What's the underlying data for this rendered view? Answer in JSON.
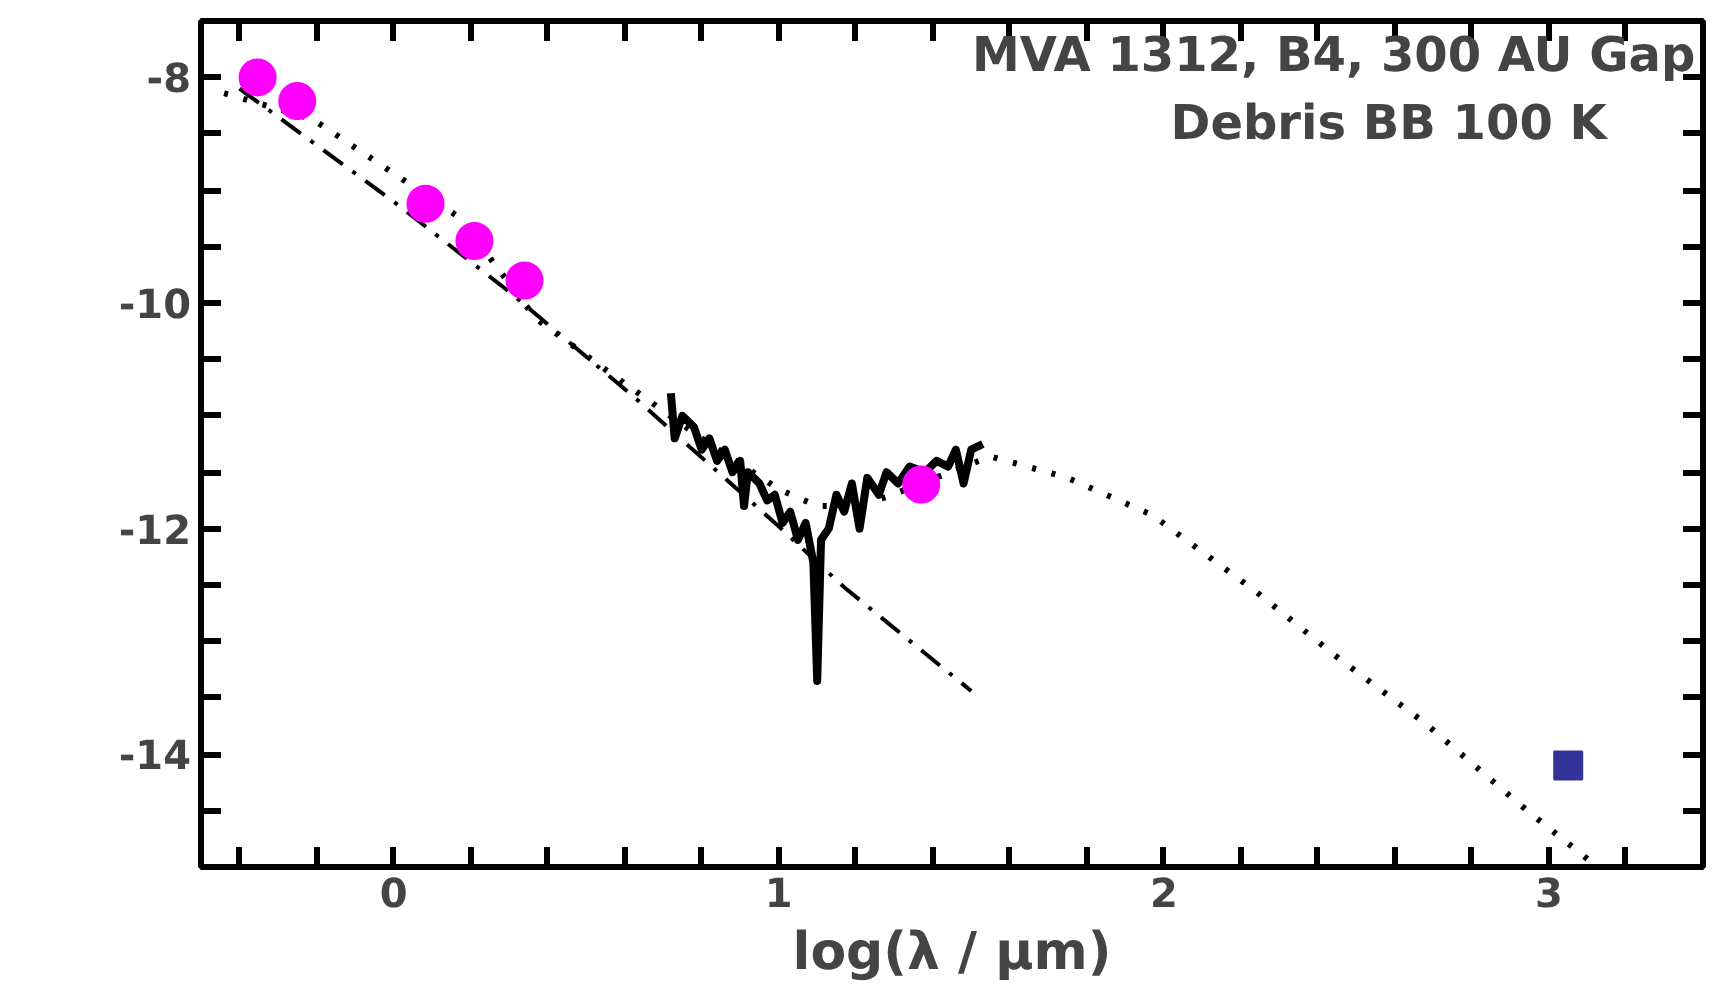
{
  "chart_data": {
    "type": "line",
    "xlabel": "log(λ / μm)",
    "annotations": [
      "MVA 1312, B4, 300 AU Gap",
      "Debris BB 100 K"
    ],
    "xlim": [
      -0.5,
      3.4
    ],
    "ylim": [
      -15,
      -7.5
    ],
    "xticks": [
      {
        "value": -0.4,
        "label": null
      },
      {
        "value": -0.2,
        "label": null
      },
      0,
      {
        "value": 0.2,
        "label": null
      },
      {
        "value": 0.4,
        "label": null
      },
      {
        "value": 0.6,
        "label": null
      },
      {
        "value": 0.8,
        "label": null
      },
      1,
      {
        "value": 1.2,
        "label": null
      },
      {
        "value": 1.4,
        "label": null
      },
      {
        "value": 1.6,
        "label": null
      },
      {
        "value": 1.8,
        "label": null
      },
      2,
      {
        "value": 2.2,
        "label": null
      },
      {
        "value": 2.4,
        "label": null
      },
      {
        "value": 2.6,
        "label": null
      },
      {
        "value": 2.8,
        "label": null
      },
      3,
      {
        "value": 3.2,
        "label": null
      }
    ],
    "yticks": [
      -8,
      {
        "value": -8.5,
        "label": null
      },
      {
        "value": -9,
        "label": null
      },
      {
        "value": -9.5,
        "label": null
      },
      -10,
      {
        "value": -10.5,
        "label": null
      },
      {
        "value": -11,
        "label": null
      },
      {
        "value": -11.5,
        "label": null
      },
      -12,
      {
        "value": -12.5,
        "label": null
      },
      {
        "value": -13,
        "label": null
      },
      {
        "value": -13.5,
        "label": null
      },
      -14,
      {
        "value": -14.5,
        "label": null
      }
    ],
    "grid": false,
    "series": [
      {
        "line_style": "dashed",
        "color": "#000000",
        "x": [
          -0.4,
          0,
          0.3,
          0.62,
          1.0,
          1.17,
          1.5
        ],
        "values": [
          -8.1,
          -9.1,
          -9.9,
          -10.82,
          -11.98,
          -12.52,
          -13.44
        ]
      },
      {
        "line_style": "dotted",
        "color": "#000000",
        "x": [
          -0.44,
          -0.21,
          0.17,
          0.37,
          0.55,
          0.8,
          1.0,
          1.1,
          1.2,
          1.28,
          1.55,
          1.75,
          1.97,
          2.24,
          2.45,
          2.68,
          2.94,
          3.1
        ],
        "values": [
          -8.14,
          -8.37,
          -9.24,
          -10.14,
          -10.59,
          -11.2,
          -11.65,
          -11.8,
          -11.8,
          -11.72,
          -11.36,
          -11.55,
          -11.88,
          -12.56,
          -13.14,
          -13.73,
          -14.49,
          -14.93
        ]
      },
      {
        "line_style": "solid",
        "color": "#000000",
        "x": [
          0.72,
          0.73,
          0.75,
          0.78,
          0.8,
          0.82,
          0.84,
          0.86,
          0.88,
          0.9,
          0.91,
          0.92,
          0.95,
          0.97,
          0.99,
          1.01,
          1.03,
          1.05,
          1.07,
          1.09,
          1.1,
          1.11,
          1.13,
          1.15,
          1.17,
          1.19,
          1.21,
          1.23,
          1.26,
          1.28,
          1.31,
          1.34,
          1.38,
          1.41,
          1.44,
          1.46,
          1.48,
          1.5,
          1.53
        ],
        "values": [
          -10.8,
          -11.2,
          -11.0,
          -11.1,
          -11.3,
          -11.2,
          -11.4,
          -11.3,
          -11.5,
          -11.4,
          -11.8,
          -11.5,
          -11.6,
          -11.75,
          -11.7,
          -11.95,
          -11.85,
          -12.1,
          -11.95,
          -12.3,
          -13.35,
          -12.1,
          -12.0,
          -11.7,
          -11.85,
          -11.6,
          -12.0,
          -11.55,
          -11.7,
          -11.5,
          -11.6,
          -11.45,
          -11.5,
          -11.4,
          -11.45,
          -11.3,
          -11.6,
          -11.3,
          -11.25
        ]
      },
      {
        "type": "scatter",
        "marker": "circle",
        "color": "#ff00ff",
        "x": [
          -0.353,
          -0.25,
          0.083,
          0.21,
          0.34,
          1.37
        ],
        "values": [
          -8.0,
          -8.21,
          -9.12,
          -9.45,
          -9.8,
          -11.61
        ]
      },
      {
        "type": "scatter",
        "marker": "square",
        "color": "#333399",
        "x": [
          3.05
        ],
        "values": [
          -14.1
        ]
      }
    ]
  }
}
